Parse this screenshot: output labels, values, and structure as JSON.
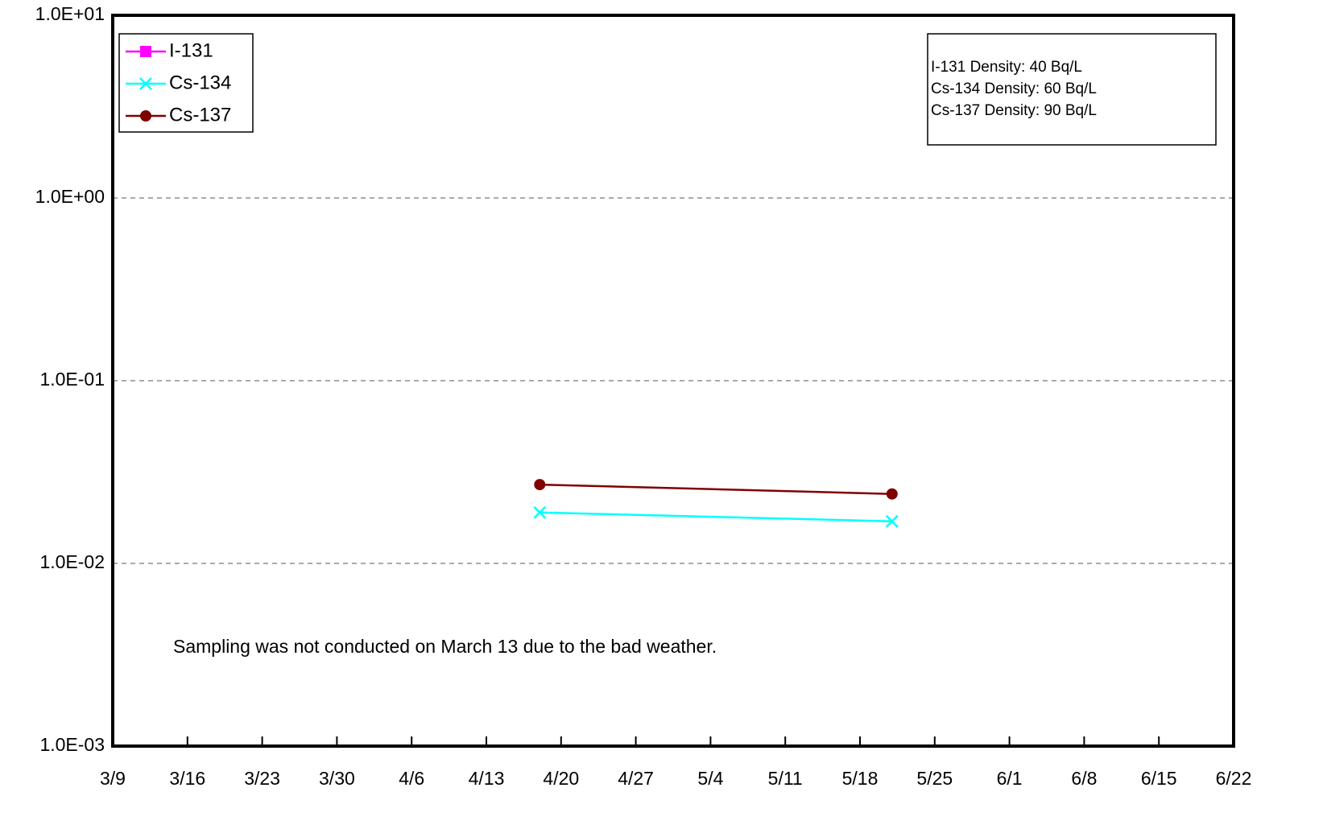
{
  "chart_data": {
    "type": "line",
    "x": [
      "4/18",
      "5/21"
    ],
    "series": [
      {
        "name": "I-131",
        "color": "#ff00ff",
        "marker": "square",
        "values": [
          null,
          null
        ]
      },
      {
        "name": "Cs-134",
        "color": "#00ffff",
        "marker": "x",
        "values": [
          0.019,
          0.017
        ]
      },
      {
        "name": "Cs-137",
        "color": "#800000",
        "marker": "circle",
        "values": [
          0.027,
          0.024
        ]
      }
    ],
    "xlim": [
      "3/9",
      "6/22"
    ],
    "xticks": [
      "3/9",
      "3/16",
      "3/23",
      "3/30",
      "4/6",
      "4/13",
      "4/20",
      "4/27",
      "5/4",
      "5/11",
      "5/18",
      "5/25",
      "6/1",
      "6/8",
      "6/15",
      "6/22"
    ],
    "ylim": [
      0.001,
      10
    ],
    "yticks": [
      {
        "value": 0.001,
        "label": "1.0E-03"
      },
      {
        "value": 0.01,
        "label": "1.0E-02"
      },
      {
        "value": 0.1,
        "label": "1.0E-01"
      },
      {
        "value": 1,
        "label": "1.0E+00"
      },
      {
        "value": 10,
        "label": "1.0E+01"
      }
    ],
    "ylog": true,
    "grid": true,
    "legend": "upper left",
    "notes": [
      "I-131 Density: 40 Bq/L",
      "Cs-134 Density: 60 Bq/L",
      "Cs-137 Density: 90 Bq/L"
    ],
    "annotation": "Sampling was not conducted on March 13 due to the bad weather."
  }
}
